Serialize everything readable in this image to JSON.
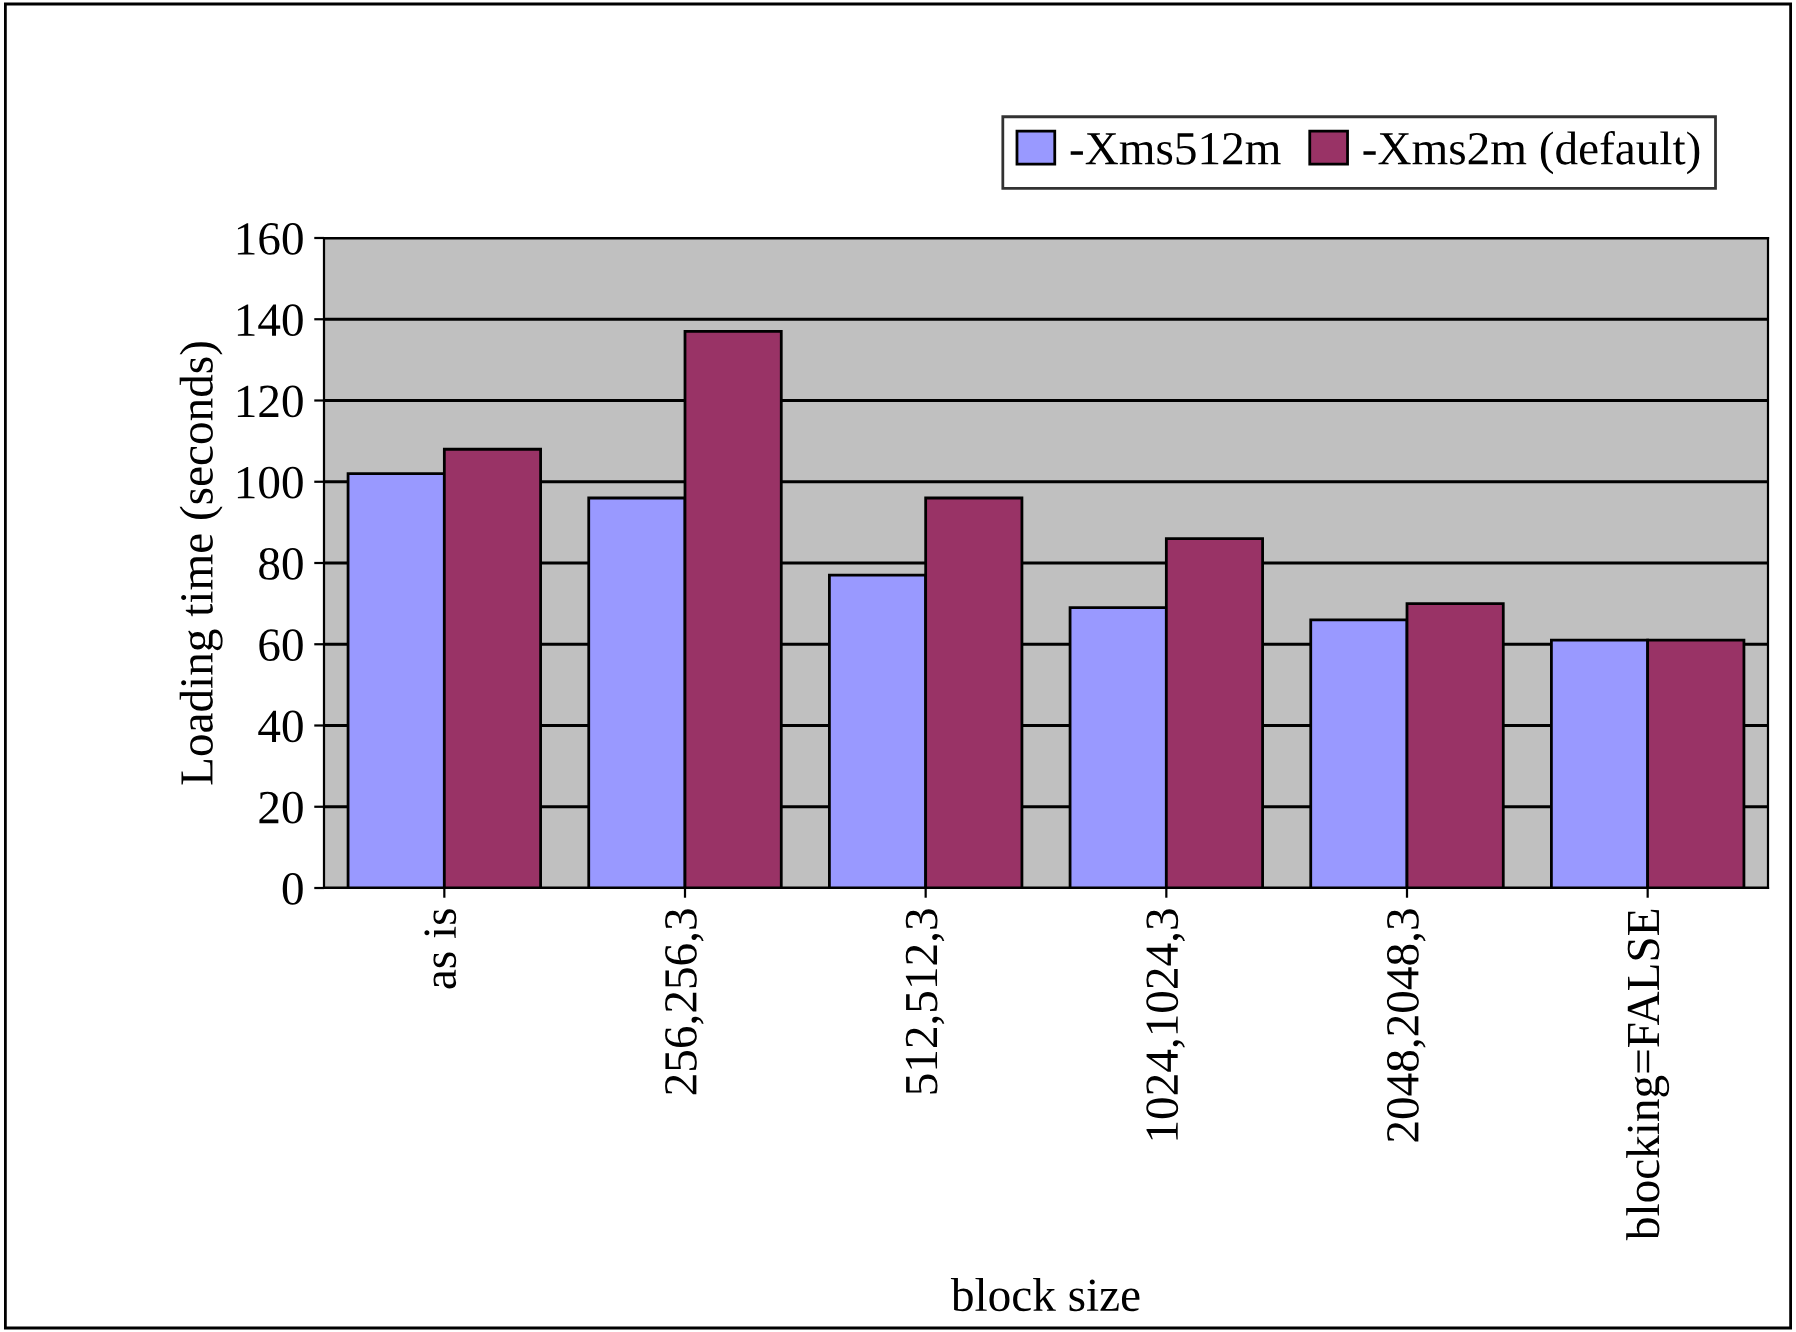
{
  "chart_data": {
    "type": "bar",
    "xlabel": "block size",
    "ylabel": "Loading time (seconds)",
    "categories": [
      "as is",
      "256,256,3",
      "512,512,3",
      "1024,1024,3",
      "2048,2048,3",
      "blocking=FALSE"
    ],
    "series": [
      {
        "name": "-Xms512m",
        "color": "#9999ff",
        "values": [
          102,
          96,
          77,
          69,
          66,
          61
        ]
      },
      {
        "name": "-Xms2m (default)",
        "color": "#993366",
        "values": [
          108,
          137,
          96,
          86,
          70,
          61
        ]
      }
    ],
    "ylim": [
      0,
      160
    ],
    "yticks": [
      0,
      20,
      40,
      60,
      80,
      100,
      120,
      140,
      160
    ],
    "grid": "y",
    "legend": "top right"
  }
}
